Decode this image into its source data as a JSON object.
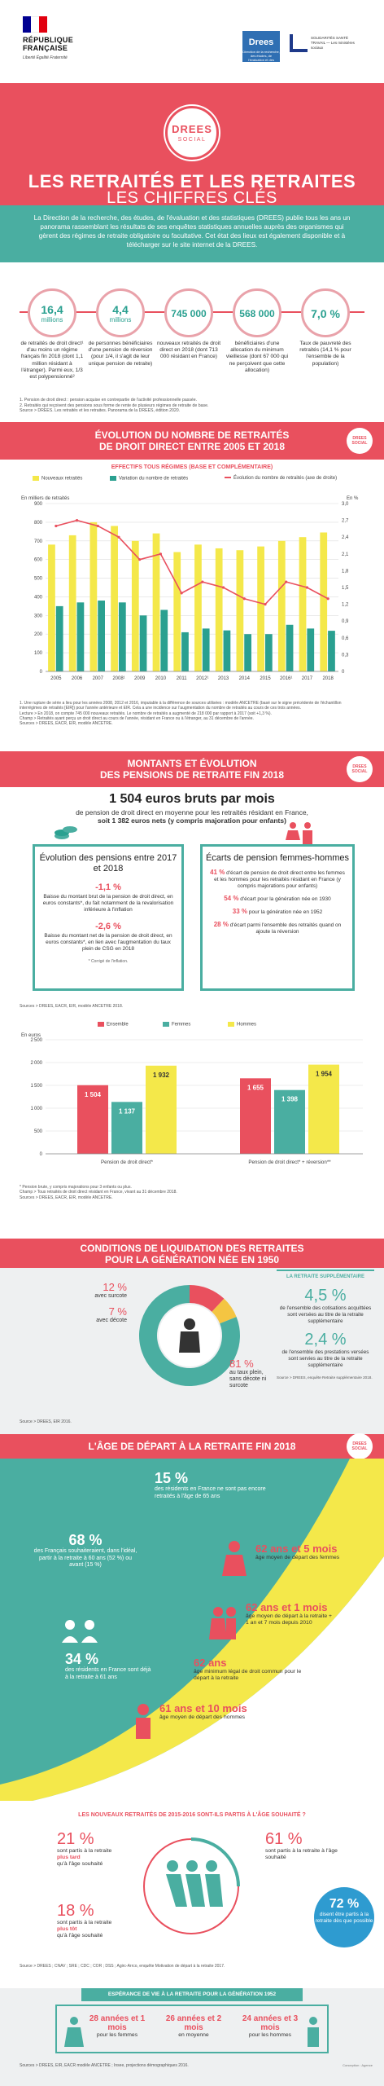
{
  "header": {
    "rf_text": "RÉPUBLIQUE FRANÇAISE",
    "rf_motto": "Liberté Égalité Fraternité",
    "drees_logo": "Drees",
    "drees_logo_sub": "Direction de la recherche, des études, de l'évaluation et des statistiques",
    "partner_text": "SOLIDARITÉS SANTÉ TRAVAIL — Les ministères sociaux"
  },
  "title": {
    "badge_top": "DREES",
    "badge_bottom": "SOCIAL",
    "main": "LES RETRAITÉS ET LES RETRAITES",
    "sub": "LES CHIFFRES CLÉS"
  },
  "intro": "La Direction de la recherche, des études, de l'évaluation et des statistiques (DREES) publie tous les ans un panorama rassemblant les résultats de ses enquêtes statistiques annuelles auprès des organismes qui gèrent des régimes de retraite obligatoire ou facultative. Cet état des lieux est également disponible et à télécharger sur le site internet de la DREES.",
  "key_figures": [
    {
      "value": "16,4",
      "unit": "millions",
      "desc": "de retraités de droit direct¹ d'au moins un régime français fin 2018 (dont 1,1 million résidant à l'étranger). Parmi eux, 1/3 est polypensionné²"
    },
    {
      "value": "4,4",
      "unit": "millions",
      "desc": "de personnes bénéficiaires d'une pension de réversion (pour 1/4, il s'agit de leur unique pension de retraite)"
    },
    {
      "value": "745 000",
      "unit": "",
      "desc": "nouveaux retraités de droit direct en 2018 (dont 713 000 résidant en France)"
    },
    {
      "value": "568 000",
      "unit": "",
      "desc": "bénéficiaires d'une allocation du minimum vieillesse (dont 67 000 qui ne perçoivent que cette allocation)"
    },
    {
      "value": "7,0 %",
      "unit": "",
      "desc": "Taux de pauvreté des retraités (14,1 % pour l'ensemble de la population)"
    }
  ],
  "kf_notes": [
    "1. Pension de droit direct : pension acquise en contrepartie de l'activité professionnelle passée.",
    "2. Retraités qui reçoivent des pensions sous forme de rente de plusieurs régimes de retraite de base.",
    "Source > DREES. Les retraités et les retraites. Panorama de la DREES, édition 2020."
  ],
  "section1": {
    "title_l1": "ÉVOLUTION DU NOMBRE DE RETRAITÉS",
    "title_l2": "DE DROIT DIRECT ENTRE 2005 ET 2018",
    "subtitle": "EFFECTIFS TOUS RÉGIMES (BASE ET COMPLÉMENTAIRE)",
    "legend": [
      "Nouveaux retraités",
      "Variation du nombre de retraités",
      "Évolution du nombre de retraités (axe de droite)"
    ],
    "notes": [
      "1. Une rupture de série a lieu pour les années 2008, 2012 et 2016, imputable à la différence de sources utilisées : modèle ANCETRE (basé sur le signe précédente de l'échantillon interrégimes de retraités [EIR]) pour l'année antérieure et EIR. Cela a une incidence sur l'augmentation du nombre de retraités au cours de ces trois années.",
      "Lecture > En 2018, on compte 745 000 nouveaux retraités. Le nombre de retraités a augmenté de 218 000 par rapport à 2017 (soit +1,3 %).",
      "Champ > Retraités ayant perçu un droit direct au cours de l'année, résidant en France ou à l'étranger, au 31 décembre de l'année.",
      "Sources > DREES, EACR, EIR, modèle ANCETRE."
    ]
  },
  "chart_data": [
    {
      "type": "bar",
      "title": "ÉVOLUTION DU NOMBRE DE RETRAITÉS DE DROIT DIRECT ENTRE 2005 ET 2018",
      "ylabel": "En milliers de retraités",
      "y2label": "En %",
      "ylim": [
        0,
        900
      ],
      "y2lim": [
        0,
        3.0
      ],
      "yticks": [
        0,
        100,
        200,
        300,
        400,
        500,
        600,
        700,
        800,
        900
      ],
      "y2ticks": [
        "0",
        "0,3",
        "0,6",
        "0,9",
        "1,2",
        "1,5",
        "1,8",
        "2,1",
        "2,4",
        "2,7",
        "3,0"
      ],
      "categories": [
        "2005",
        "2006",
        "2007",
        "2008¹",
        "2009",
        "2010",
        "2011",
        "2012¹",
        "2013",
        "2014",
        "2015",
        "2016¹",
        "2017",
        "2018"
      ],
      "series": [
        {
          "name": "Nouveaux retraités",
          "values": [
            680,
            730,
            800,
            780,
            700,
            740,
            640,
            680,
            660,
            650,
            670,
            700,
            720,
            745
          ]
        },
        {
          "name": "Variation du nombre de retraités",
          "values": [
            350,
            370,
            380,
            370,
            300,
            330,
            210,
            230,
            220,
            200,
            200,
            250,
            230,
            218
          ]
        },
        {
          "name": "Évolution du nombre de retraités (axe de droite)",
          "axis": "right",
          "values": [
            2.6,
            2.7,
            2.6,
            2.4,
            2.0,
            2.1,
            1.4,
            1.6,
            1.5,
            1.3,
            1.2,
            1.6,
            1.5,
            1.3
          ]
        }
      ]
    },
    {
      "type": "bar",
      "ylabel": "En euros",
      "ylim": [
        0,
        2500
      ],
      "yticks": [
        0,
        500,
        1000,
        1500,
        2000,
        2500
      ],
      "categories": [
        "Pension de droit direct*",
        "Pension de droit direct* + réversion**"
      ],
      "series": [
        {
          "name": "Ensemble",
          "values": [
            1504,
            1655
          ]
        },
        {
          "name": "Femmes",
          "values": [
            1137,
            1398
          ]
        },
        {
          "name": "Hommes",
          "values": [
            1932,
            1954
          ]
        }
      ],
      "value_labels": [
        [
          "1 504",
          "1 137",
          "1 932"
        ],
        [
          "1 655",
          "1 398",
          "1 954"
        ]
      ]
    }
  ],
  "section2": {
    "title_l1": "MONTANTS ET ÉVOLUTION",
    "title_l2": "DES PENSIONS DE RETRAITE FIN 2018",
    "big": "1 504 euros bruts par mois",
    "big_l2": "de pension de droit direct en moyenne pour les retraités résidant en France,",
    "big_l3": "soit 1 382 euros nets (y compris majoration pour enfants)",
    "box1_title": "Évolution des pensions entre 2017 et 2018",
    "box1_pct1": "-1,1 %",
    "box1_t1": "Baisse du montant brut de la pension de droit direct, en euros constants*, du fait notamment de la revalorisation inférieure à l'inflation",
    "box1_pct2": "-2,6 %",
    "box1_t2": "Baisse du montant net de la pension de droit direct, en euros constants*, en lien avec l'augmentation du taux plein de CSG en 2018",
    "box1_foot": "* Corrigé de l'inflation.",
    "box2_title": "Écarts de pension femmes-hommes",
    "gaps": [
      {
        "pct": "41 %",
        "text": "d'écart de pension de droit direct entre les femmes et les hommes pour les retraités résidant en France (y compris majorations pour enfants)"
      },
      {
        "pct": "54 %",
        "text": "d'écart pour la génération née en 1930"
      },
      {
        "pct": "33 %",
        "text": "pour la génération née en 1952"
      },
      {
        "pct": "28 %",
        "text": "d'écart parmi l'ensemble des retraités quand on ajoute la réversion"
      }
    ],
    "source": "Sources > DREES, EACR, EIR, modèle ANCETRE 2018.",
    "legend": [
      "Ensemble",
      "Femmes",
      "Hommes"
    ],
    "notes": [
      "* Pension brute, y compris majorations pour 3 enfants ou plus.",
      "Champ > Tous retraités de droit direct résidant en France, vivant au 31 décembre 2018.",
      "Sources > DREES, EACR, EIR, modèle ANCETRE."
    ]
  },
  "section3": {
    "title_l1": "CONDITIONS DE LIQUIDATION DES RETRAITES",
    "title_l2": "POUR LA GÉNÉRATION NÉE EN 1950",
    "donut": [
      {
        "label": "avec surcote",
        "pct": "12 %",
        "value": 12,
        "color": "#e9505e"
      },
      {
        "label": "avec décote",
        "pct": "7 %",
        "value": 7,
        "color": "#f4c542"
      },
      {
        "label": "au taux plein, sans décote ni surcote",
        "pct": "81 %",
        "value": 81,
        "color": "#4aaea1"
      }
    ],
    "supp_head": "LA RETRAITE SUPPLÉMENTAIRE",
    "supp": [
      {
        "pct": "4,5 %",
        "text": "de l'ensemble des cotisations acquittées sont versées au titre de la retraite supplémentaire"
      },
      {
        "pct": "2,4 %",
        "text": "de l'ensemble des prestations versées sont servies au titre de la retraite supplémentaire"
      }
    ],
    "supp_src": "Source > DREES, enquête Retraite supplémentaire 2018.",
    "source": "Source > DREES, EIR 2016."
  },
  "section4": {
    "title": "L'ÂGE DE DÉPART À LA RETRAITE FIN 2018",
    "s15": "15 %",
    "s15_t": "des résidents en France ne sont pas encore retraités à l'âge de 65 ans",
    "s68": "68 %",
    "s68_t1": "des Français souhaiteraient, dans l'idéal, partir à la retraite à 60 ans (52 %) ou avant (15 %)",
    "s34": "34 %",
    "s34_t": "des résidents en France sont déjà à la retraite à 61 ans",
    "age1": "62 ans et 5 mois",
    "age1_t": "âge moyen de départ des femmes",
    "age2": "62 ans et 1 mois",
    "age2_t": "âge moyen de départ à la retraite + 1 an et 7 mois depuis 2010",
    "age3": "62 ans",
    "age3_t": "âge minimum légal de droit commun pour le départ à la retraite",
    "age4": "61 ans et 10 mois",
    "age4_t": "âge moyen de départ des hommes"
  },
  "section5": {
    "title": "LES NOUVEAUX RETRAITÉS DE 2015-2016 SONT-ILS PARTIS À L'ÂGE SOUHAITÉ ?",
    "a_pct": "21 %",
    "a_t1": "sont partis à la retraite",
    "a_t2": "plus tard",
    "a_t3": "qu'à l'âge souhaité",
    "b_pct": "18 %",
    "b_t1": "sont partis à la retraite",
    "b_t2": "plus tôt",
    "b_t3": "qu'à l'âge souhaité",
    "c_pct": "61 %",
    "c_t": "sont partis à la retraite à l'âge souhaité",
    "d_pct": "72 %",
    "d_t": "disent être partis à la retraite dès que possible",
    "source": "Source > DREES ; CNAV ; SRE ; CDC ; COR ; DSS ; Agirc-Arrco, enquête Motivation de départ à la retraite 2017."
  },
  "section6": {
    "title": "ESPÉRANCE DE VIE À LA RETRAITE POUR LA GÉNÉRATION 1952",
    "cols": [
      {
        "v": "28 années et 1 mois",
        "t": "pour les femmes"
      },
      {
        "v": "26 années et 2 mois",
        "t": "en moyenne"
      },
      {
        "v": "24 années et 3 mois",
        "t": "pour les hommes"
      }
    ],
    "source": "Sources > DREES, EIR, EACR modèle ANCETRE ; Insee, projections démographiques 2016.",
    "credit": "Conception : Agence"
  },
  "colors": {
    "red": "#e9505e",
    "teal": "#4aaea1",
    "yellow": "#f4e84a",
    "green": "#2aa090",
    "blue": "#2e9bd0"
  }
}
